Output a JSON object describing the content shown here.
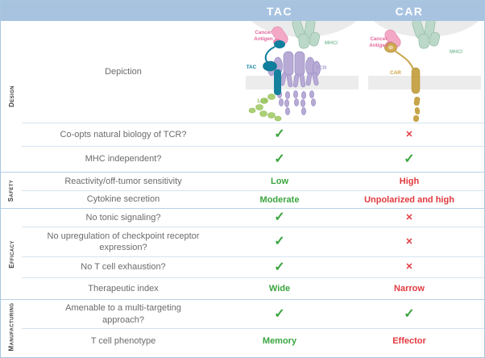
{
  "header": {
    "columns": [
      "TAC",
      "CAR"
    ]
  },
  "colors": {
    "header_bg": "#a7c3e0",
    "header_text": "#ffffff",
    "positive": "#3aa53f",
    "negative": "#e2393f",
    "row_line": "#d4e4f2",
    "section_line": "#b7d1e7",
    "border": "#a9c7df",
    "criterion_text": "#6b6b6b",
    "section_label_text": "#3d3d3d"
  },
  "symbols": {
    "check": "✓",
    "cross": "✕"
  },
  "depiction": {
    "row_label": "Depiction",
    "tac_diagram": {
      "cancer_antigen_line1": "Cancer",
      "cancer_antigen_line2": "Antigen",
      "mhci": "MHCI",
      "tac": "TAC",
      "tcr": "TCR",
      "lck": "LCK"
    },
    "car_diagram": {
      "cancer_antigen_line1": "Cancer",
      "cancer_antigen_line2": "Antigen",
      "mhci": "MHCI",
      "car": "CAR"
    }
  },
  "sections": [
    {
      "label": "Design",
      "rows": [
        {
          "criterion": "Co-opts natural biology of TCR?",
          "tac": {
            "symbol": "check"
          },
          "car": {
            "symbol": "cross"
          },
          "height": 29
        },
        {
          "criterion": "MHC independent?",
          "tac": {
            "symbol": "check"
          },
          "car": {
            "symbol": "check"
          },
          "height": 32
        }
      ]
    },
    {
      "label": "Safety",
      "rows": [
        {
          "criterion": "Reactivity/off-tumor sensitivity",
          "tac": {
            "text": "Low",
            "tone": "good"
          },
          "car": {
            "text": "High",
            "tone": "bad"
          },
          "height": 22
        },
        {
          "criterion": "Cytokine secretion",
          "tac": {
            "text": "Moderate",
            "tone": "good"
          },
          "car": {
            "text": "Unpolarized and high",
            "tone": "bad"
          },
          "height": 22
        }
      ]
    },
    {
      "label": "Efficacy",
      "rows": [
        {
          "criterion": "No tonic signaling?",
          "tac": {
            "symbol": "check"
          },
          "car": {
            "symbol": "cross"
          },
          "height": 22
        },
        {
          "criterion": "No upregulation of checkpoint receptor expression?",
          "tac": {
            "symbol": "check"
          },
          "car": {
            "symbol": "cross"
          },
          "height": 37
        },
        {
          "criterion": "No T cell exhaustion?",
          "tac": {
            "symbol": "check"
          },
          "car": {
            "symbol": "cross"
          },
          "height": 26
        },
        {
          "criterion": "Therapeutic index",
          "tac": {
            "text": "Wide",
            "tone": "good"
          },
          "car": {
            "text": "Narrow",
            "tone": "bad"
          },
          "height": 27
        }
      ]
    },
    {
      "label": "Manufacturing",
      "rows": [
        {
          "criterion": "Amenable to a multi-targeting approach?",
          "tac": {
            "symbol": "check"
          },
          "car": {
            "symbol": "check"
          },
          "height": 35
        },
        {
          "criterion": "T cell phenotype",
          "tac": {
            "text": "Memory",
            "tone": "good"
          },
          "car": {
            "text": "Effector",
            "tone": "bad"
          },
          "height": 31
        }
      ]
    }
  ]
}
